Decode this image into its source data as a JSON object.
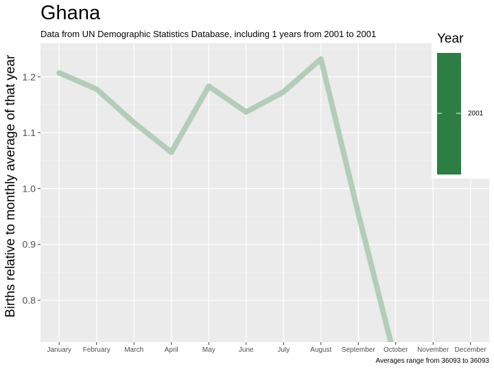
{
  "chart_data": {
    "type": "line",
    "title": "Ghana",
    "subtitle": "Data from UN Demographic Statistics Database, including 1 years from 2001 to 2001",
    "ylabel": "Births relative to monthly average of that year",
    "xlabel": "",
    "caption": "Averages range from 36093 to 36093",
    "categories": [
      "January",
      "February",
      "March",
      "April",
      "May",
      "June",
      "July",
      "August",
      "September",
      "October",
      "November",
      "December"
    ],
    "yticks": [
      "0.8",
      "0.9",
      "1.0",
      "1.1",
      "1.2"
    ],
    "ylim": [
      0.725,
      1.26
    ],
    "grid": true,
    "legend": {
      "title": "Year",
      "entries": [
        "2001"
      ],
      "position": "right"
    },
    "series": [
      {
        "name": "2001",
        "color": "#b4cdbb",
        "values": [
          1.207,
          1.178,
          1.118,
          1.065,
          1.183,
          1.137,
          1.173,
          1.232,
          0.955,
          0.69,
          null,
          null
        ]
      }
    ],
    "legend_color": "#2e7d45",
    "panel_color": "#ebebeb"
  }
}
